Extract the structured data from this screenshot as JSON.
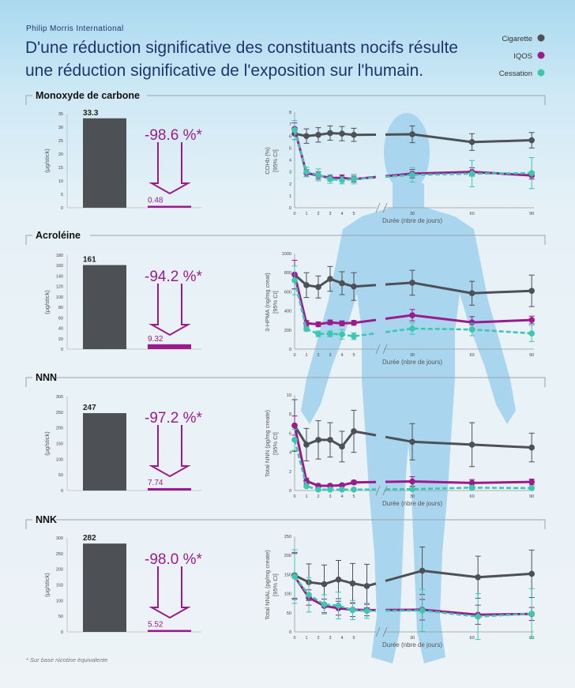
{
  "header": {
    "brand": "Philip Morris International",
    "title_line1": "D'une réduction significative des constituants nocifs résulte",
    "title_line2": "une réduction significative de l'exposition sur l'humain."
  },
  "legend": [
    {
      "label": "Cigarette",
      "color": "#4d5156"
    },
    {
      "label": "IQOS",
      "color": "#9b1b8e"
    },
    {
      "label": "Cessation",
      "color": "#3ec6b1"
    }
  ],
  "colors": {
    "cigarette": "#4d5156",
    "iqos": "#9b1b8e",
    "cessation": "#3ec6b1",
    "silhouette": "#a9d6ee",
    "title": "#1e3470"
  },
  "footnote": "* Sur base nicotine équivalente",
  "chart_data": [
    {
      "section": "Monoxyde de carbone",
      "type": "bar",
      "ylabel": "(µg/stick)",
      "ylim": [
        0,
        35
      ],
      "yticks": [
        0,
        5,
        10,
        15,
        20,
        25,
        30,
        35
      ],
      "categories": [
        "Cigarette",
        "IQOS"
      ],
      "values": [
        33.3,
        0.48
      ],
      "value_labels": [
        "33.3",
        "0.48"
      ],
      "reduction": "-98.6 %*"
    },
    {
      "section": "Monoxyde de carbone",
      "type": "line",
      "ylabel": [
        "COHb (%)",
        "[95% CI]"
      ],
      "xlabel": "Durée (nbre de jours)",
      "ylim": [
        0,
        8
      ],
      "yticks": [
        0,
        1,
        2,
        3,
        4,
        5,
        6,
        7,
        8
      ],
      "xticks": [
        0,
        1,
        2,
        3,
        4,
        5,
        30,
        60,
        90
      ],
      "x_axis_break": true,
      "x": [
        0,
        1,
        2,
        3,
        4,
        5,
        30,
        60,
        90
      ],
      "series": [
        {
          "name": "Cigarette",
          "values": [
            6.2,
            6.0,
            6.1,
            6.25,
            6.2,
            6.1,
            6.15,
            5.5,
            5.65
          ],
          "ci": [
            0.5,
            0.6,
            0.6,
            0.6,
            0.6,
            0.55,
            0.7,
            0.7,
            0.65
          ]
        },
        {
          "name": "IQOS",
          "values": [
            6.6,
            2.9,
            2.7,
            2.5,
            2.5,
            2.4,
            2.85,
            3.0,
            2.7
          ],
          "ci": [
            0.5,
            0.3,
            0.3,
            0.25,
            0.25,
            0.25,
            0.35,
            0.35,
            0.3
          ]
        },
        {
          "name": "Cessation",
          "values": [
            6.5,
            3.0,
            2.75,
            2.4,
            2.3,
            2.4,
            2.75,
            2.85,
            2.9
          ],
          "ci": [
            0.8,
            0.4,
            0.5,
            0.35,
            0.3,
            0.4,
            0.6,
            1.1,
            1.3
          ]
        }
      ]
    },
    {
      "section": "Acroléine",
      "type": "bar",
      "ylabel": "(µg/stick)",
      "ylim": [
        0,
        180
      ],
      "yticks": [
        0,
        20,
        40,
        60,
        80,
        100,
        120,
        140,
        160,
        180
      ],
      "categories": [
        "Cigarette",
        "IQOS"
      ],
      "values": [
        161,
        9.32
      ],
      "value_labels": [
        "161",
        "9.32"
      ],
      "reduction": "-94.2 %*"
    },
    {
      "section": "Acroléine",
      "type": "line",
      "ylabel": [
        "3-HPMA (ng/mg creat)",
        "[95% CI]"
      ],
      "xlabel": "Durée (nbre de jours)",
      "ylim": [
        0,
        1000
      ],
      "yticks": [
        0,
        200,
        400,
        600,
        800,
        1000
      ],
      "xticks": [
        0,
        1,
        2,
        3,
        4,
        5,
        30,
        60,
        90
      ],
      "x_axis_break": true,
      "x": [
        0,
        1,
        2,
        3,
        4,
        5,
        30,
        60,
        90
      ],
      "series": [
        {
          "name": "Cigarette",
          "values": [
            780,
            670,
            650,
            735,
            690,
            655,
            695,
            585,
            610
          ],
          "ci": [
            150,
            130,
            115,
            130,
            120,
            145,
            130,
            125,
            165
          ]
        },
        {
          "name": "IQOS",
          "values": [
            780,
            270,
            260,
            280,
            270,
            275,
            355,
            280,
            305
          ],
          "ci": [
            150,
            30,
            25,
            25,
            25,
            25,
            60,
            60,
            40
          ]
        },
        {
          "name": "Cessation",
          "values": [
            720,
            210,
            160,
            160,
            155,
            135,
            215,
            205,
            165
          ],
          "ci": [
            150,
            20,
            30,
            30,
            50,
            35,
            60,
            65,
            85
          ]
        }
      ]
    },
    {
      "section": "NNN",
      "type": "bar",
      "ylabel": "(µg/stick)",
      "ylim": [
        0,
        300
      ],
      "yticks": [
        0,
        50,
        100,
        150,
        200,
        250,
        300
      ],
      "categories": [
        "Cigarette",
        "IQOS"
      ],
      "values": [
        247,
        7.74
      ],
      "value_labels": [
        "247",
        "7.74"
      ],
      "reduction": "-97.2 %*"
    },
    {
      "section": "NNN",
      "type": "line",
      "ylabel": [
        "Total NNN (pg/mg create)",
        "[95% CI]"
      ],
      "xlabel": "Durée (nbre de jours)",
      "ylim": [
        0,
        10
      ],
      "yticks": [
        0,
        2,
        4,
        6,
        8,
        10
      ],
      "xticks": [
        0,
        1,
        2,
        3,
        4,
        5,
        30,
        60,
        90
      ],
      "x_axis_break": true,
      "x": [
        0,
        1,
        2,
        3,
        4,
        5,
        30,
        60,
        90
      ],
      "series": [
        {
          "name": "Cigarette",
          "values": [
            6.8,
            4.8,
            5.3,
            5.3,
            4.6,
            6.2,
            5.1,
            4.8,
            4.5
          ],
          "ci": [
            2.7,
            1.7,
            2.0,
            1.8,
            1.6,
            2.2,
            1.9,
            2.3,
            1.5
          ]
        },
        {
          "name": "IQOS",
          "values": [
            6.8,
            1.0,
            0.5,
            0.5,
            0.55,
            0.85,
            0.95,
            0.8,
            0.9
          ],
          "ci": [
            1.0,
            0.3,
            0.15,
            0.15,
            0.15,
            0.2,
            0.5,
            0.35,
            0.3
          ]
        },
        {
          "name": "Cessation",
          "values": [
            5.3,
            0.45,
            0.1,
            0.1,
            0.1,
            0.1,
            0.15,
            0.3,
            0.25
          ],
          "ci": [
            1.1,
            0.1,
            0.1,
            0.1,
            0.1,
            0.1,
            0.1,
            0.2,
            0.1
          ]
        }
      ]
    },
    {
      "section": "NNK",
      "type": "bar",
      "ylabel": "(µg/stick)",
      "ylim": [
        0,
        300
      ],
      "yticks": [
        0,
        50,
        100,
        150,
        200,
        250,
        300
      ],
      "categories": [
        "Cigarette",
        "IQOS"
      ],
      "values": [
        282,
        5.52
      ],
      "value_labels": [
        "282",
        "5.52"
      ],
      "reduction": "-98.0 %*"
    },
    {
      "section": "NNK",
      "type": "line",
      "ylabel": [
        "Total NNAL (pg/mg create)",
        "[95% CI]"
      ],
      "xlabel": "Durée (nbre de jours)",
      "ylim": [
        0,
        250
      ],
      "yticks": [
        0,
        50,
        100,
        150,
        200,
        250
      ],
      "xticks": [
        0,
        1,
        2,
        3,
        4,
        5,
        30,
        60,
        90
      ],
      "x_axis_break": true,
      "x": [
        0,
        1.2,
        2.5,
        3.7,
        4.9,
        6.1,
        35,
        63,
        90
      ],
      "series": [
        {
          "name": "Cigarette",
          "values": [
            148,
            130,
            125,
            137,
            127,
            120,
            160,
            143,
            152
          ],
          "ci": [
            60,
            48,
            50,
            50,
            52,
            57,
            62,
            55,
            62
          ]
        },
        {
          "name": "IQOS",
          "values": [
            145,
            90,
            68,
            62,
            58,
            57,
            58,
            45,
            47
          ],
          "ci": [
            60,
            20,
            18,
            18,
            18,
            15,
            27,
            25,
            17
          ]
        },
        {
          "name": "Cessation",
          "values": [
            145,
            97,
            72,
            69,
            57,
            55,
            56,
            40,
            48
          ],
          "ci": [
            70,
            45,
            25,
            35,
            25,
            20,
            55,
            60,
            65
          ]
        }
      ]
    }
  ]
}
